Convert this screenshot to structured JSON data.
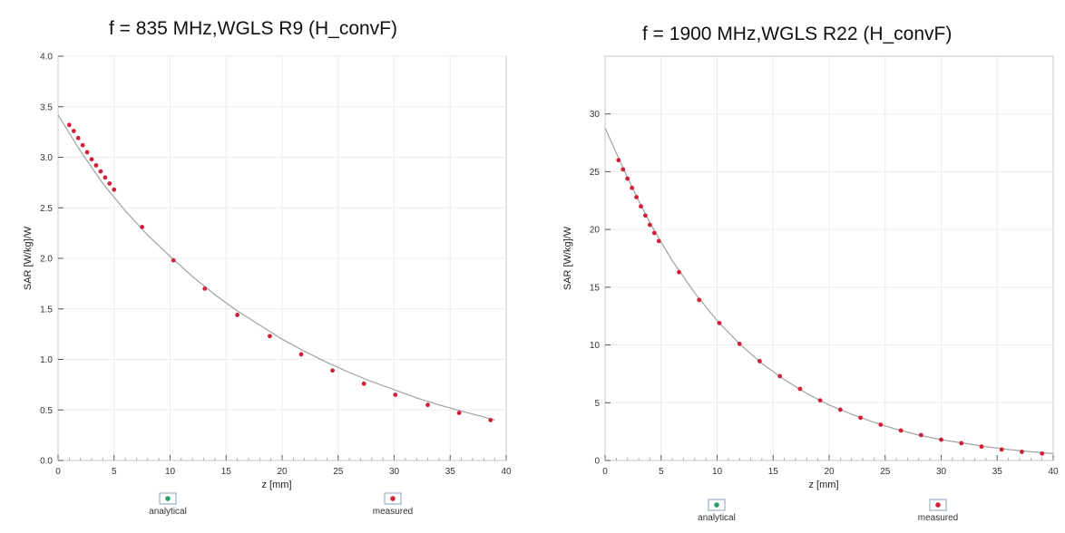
{
  "chart_data": [
    {
      "type": "line",
      "title": "f = 835 MHz,WGLS R9 (H_convF)",
      "xlabel": "z [mm]",
      "ylabel": "SAR [W/kg]/W",
      "xlim": [
        0,
        40
      ],
      "ylim": [
        0,
        4.0
      ],
      "xticks": [
        "0",
        "5",
        "10",
        "15",
        "20",
        "25",
        "30",
        "35",
        "40"
      ],
      "yticks": [
        "0.0",
        "0.5",
        "1.0",
        "1.5",
        "2.0",
        "2.5",
        "3.0",
        "3.5",
        "4.0"
      ],
      "grid": true,
      "legend": {
        "placement": "bottom",
        "entries": [
          "analytical",
          "measured"
        ]
      },
      "colors": {
        "analytical": "#2aa06a",
        "measured": "#d0203a"
      },
      "series": [
        {
          "name": "analytical",
          "x": [
            0,
            2,
            4,
            6,
            8,
            10,
            12,
            14,
            16,
            18,
            20,
            22,
            24,
            26,
            28,
            30,
            32,
            34,
            36,
            38,
            39
          ],
          "y": [
            3.42,
            3.06,
            2.74,
            2.47,
            2.23,
            2.02,
            1.82,
            1.64,
            1.48,
            1.34,
            1.2,
            1.08,
            0.97,
            0.87,
            0.78,
            0.7,
            0.62,
            0.55,
            0.49,
            0.43,
            0.4
          ]
        },
        {
          "name": "measured",
          "x": [
            1.0,
            1.4,
            1.8,
            2.2,
            2.6,
            3.0,
            3.4,
            3.8,
            4.2,
            4.6,
            5.0,
            7.5,
            10.3,
            13.1,
            16.0,
            18.9,
            21.7,
            24.5,
            27.3,
            30.1,
            33.0,
            35.8,
            38.6
          ],
          "y": [
            3.32,
            3.26,
            3.19,
            3.12,
            3.05,
            2.98,
            2.92,
            2.86,
            2.8,
            2.74,
            2.68,
            2.31,
            1.98,
            1.7,
            1.44,
            1.23,
            1.05,
            0.89,
            0.76,
            0.65,
            0.55,
            0.47,
            0.4
          ]
        }
      ]
    },
    {
      "type": "line",
      "title": "f = 1900 MHz,WGLS R22 (H_convF)",
      "xlabel": "z [mm]",
      "ylabel": "SAR [W/kg]/W",
      "xlim": [
        0,
        40
      ],
      "ylim": [
        0,
        35
      ],
      "xticks": [
        "0",
        "5",
        "10",
        "15",
        "20",
        "25",
        "30",
        "35",
        "40"
      ],
      "yticks": [
        "0",
        "5",
        "10",
        "15",
        "20",
        "25",
        "30"
      ],
      "grid": true,
      "legend": {
        "placement": "bottom",
        "entries": [
          "analytical",
          "measured"
        ]
      },
      "colors": {
        "analytical": "#2aa06a",
        "measured": "#d0203a"
      },
      "series": [
        {
          "name": "analytical",
          "x": [
            0,
            1,
            2,
            3,
            4,
            5,
            6,
            8,
            10,
            12,
            14,
            16,
            18,
            20,
            22,
            24,
            26,
            28,
            30,
            32,
            34,
            36,
            38,
            40
          ],
          "y": [
            28.8,
            26.6,
            24.5,
            22.5,
            20.6,
            18.9,
            17.3,
            14.5,
            12.1,
            10.1,
            8.4,
            7.0,
            5.8,
            4.8,
            4.0,
            3.3,
            2.7,
            2.2,
            1.8,
            1.5,
            1.2,
            0.95,
            0.75,
            0.6
          ]
        },
        {
          "name": "measured",
          "x": [
            1.2,
            1.6,
            2.0,
            2.4,
            2.8,
            3.2,
            3.6,
            4.0,
            4.4,
            4.8,
            6.6,
            8.4,
            10.2,
            12.0,
            13.8,
            15.6,
            17.4,
            19.2,
            21.0,
            22.8,
            24.6,
            26.4,
            28.2,
            30.0,
            31.8,
            33.6,
            35.4,
            37.2,
            39.0
          ],
          "y": [
            26.0,
            25.2,
            24.4,
            23.6,
            22.8,
            22.0,
            21.2,
            20.4,
            19.7,
            19.0,
            16.3,
            13.9,
            11.9,
            10.1,
            8.6,
            7.3,
            6.2,
            5.2,
            4.4,
            3.7,
            3.1,
            2.6,
            2.2,
            1.8,
            1.5,
            1.2,
            0.95,
            0.75,
            0.6
          ]
        }
      ]
    }
  ]
}
